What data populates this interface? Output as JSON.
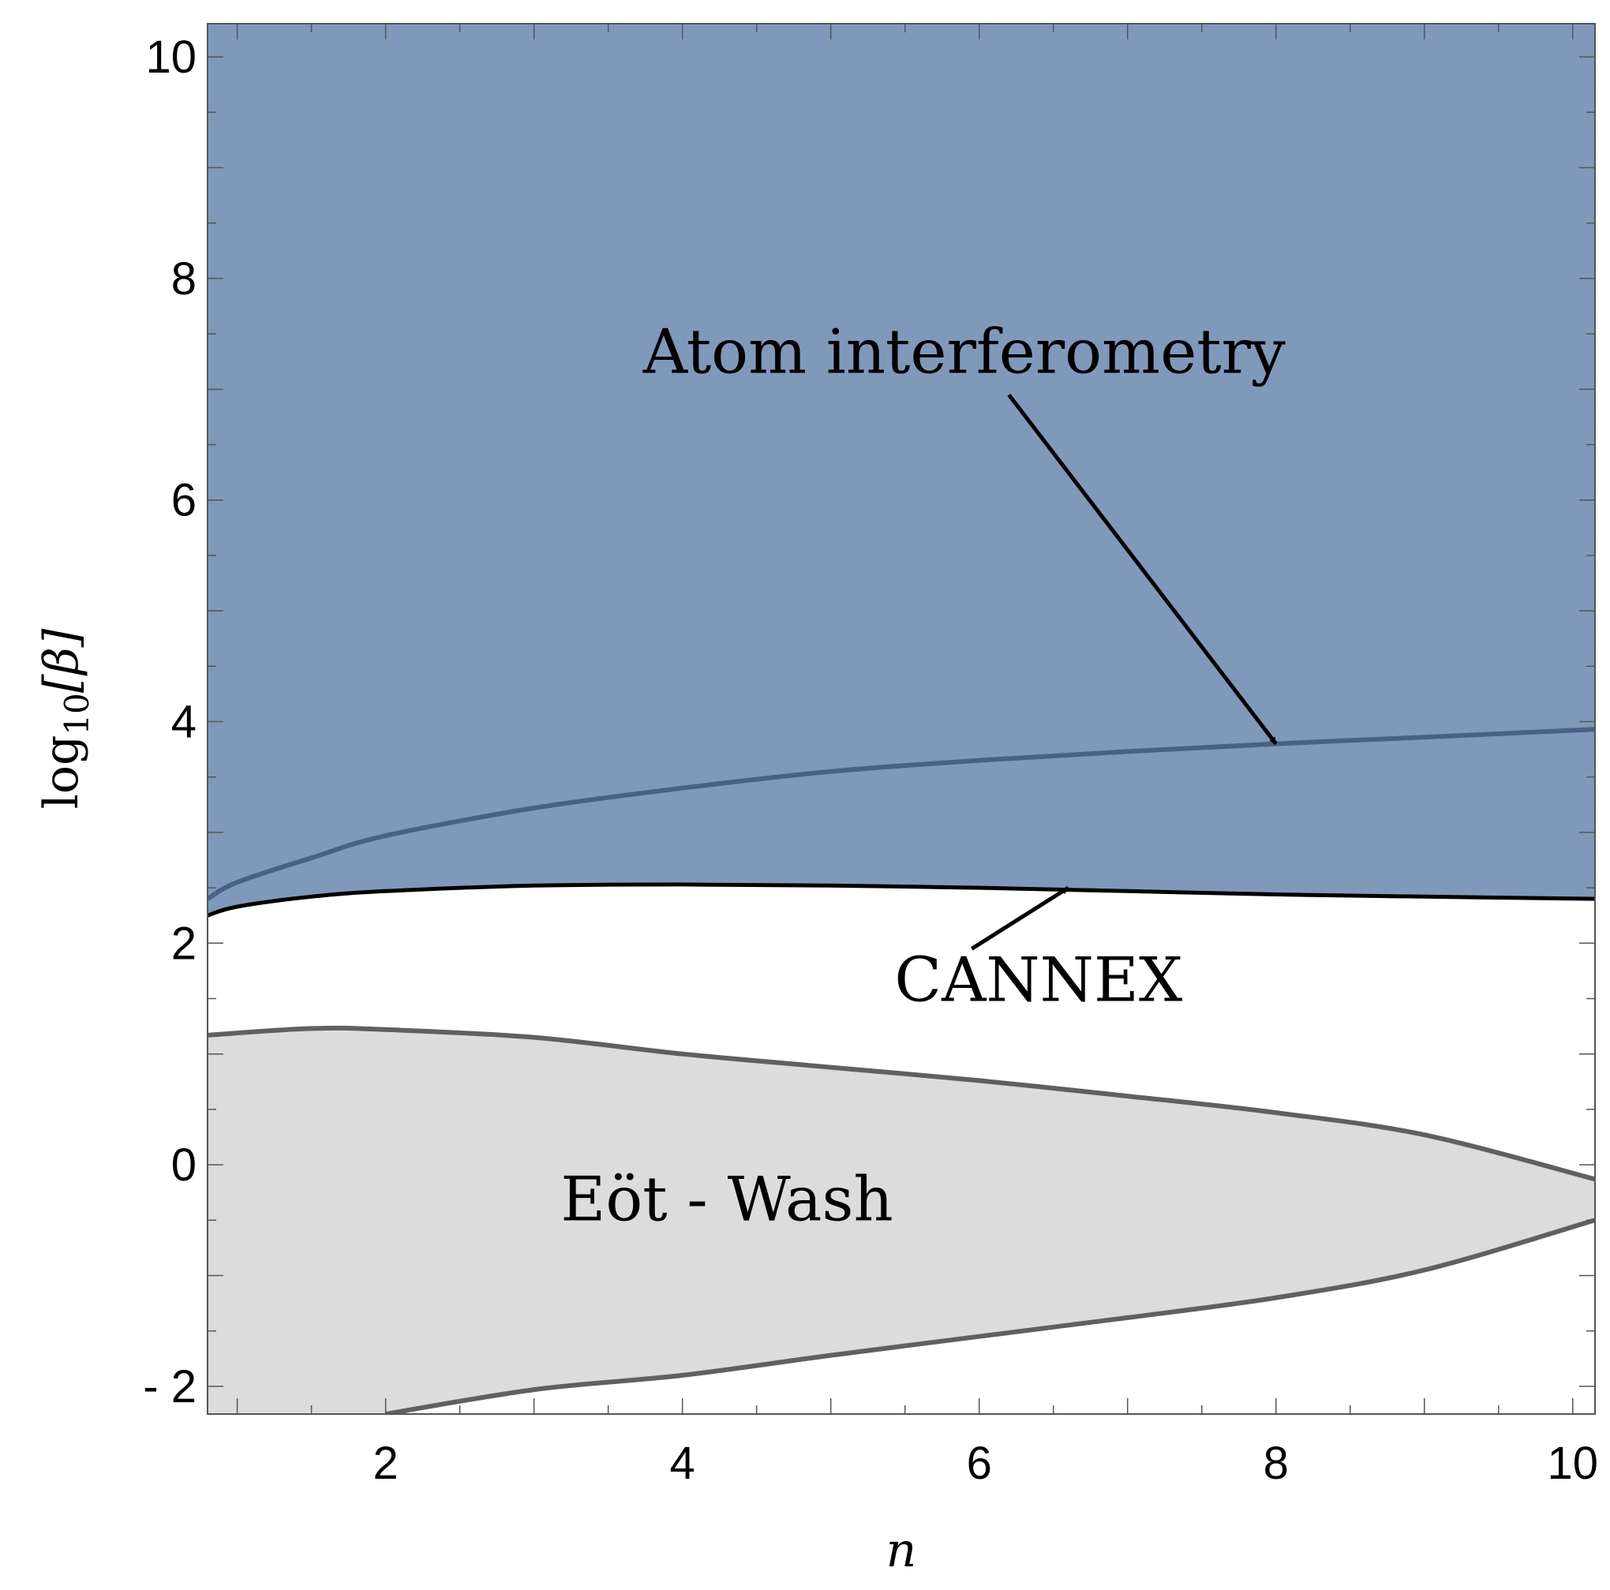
{
  "chart_data": {
    "type": "area",
    "xlabel": "n",
    "ylabel": "log₁₀[β]",
    "ylabel_parts": {
      "func": "log",
      "subscript": "10",
      "arg": "[β]"
    },
    "xlim": [
      0.8,
      10.15
    ],
    "ylim": [
      -2.25,
      10.3
    ],
    "x_ticks": [
      2,
      4,
      6,
      8,
      10
    ],
    "y_ticks": [
      -2,
      0,
      2,
      4,
      6,
      8,
      10
    ],
    "y_tick_labels": [
      "- 2",
      "0",
      "2",
      "4",
      "6",
      "8",
      "10"
    ],
    "grid": false,
    "series": [
      {
        "name": "CANNEX",
        "fill": "above",
        "fill_color": "#8099BB",
        "line_color": "#000000",
        "points": [
          [
            0.8,
            2.25
          ],
          [
            1.0,
            2.33
          ],
          [
            1.5,
            2.42
          ],
          [
            2.0,
            2.47
          ],
          [
            3.0,
            2.52
          ],
          [
            4.0,
            2.53
          ],
          [
            5.0,
            2.52
          ],
          [
            6.0,
            2.5
          ],
          [
            7.0,
            2.47
          ],
          [
            8.0,
            2.44
          ],
          [
            9.0,
            2.42
          ],
          [
            10.15,
            2.4
          ]
        ]
      },
      {
        "name": "Atom interferometry",
        "fill": "none",
        "line_color": "#4A6187",
        "points": [
          [
            0.8,
            2.4
          ],
          [
            1.0,
            2.55
          ],
          [
            1.5,
            2.77
          ],
          [
            2.0,
            2.97
          ],
          [
            3.0,
            3.22
          ],
          [
            4.0,
            3.4
          ],
          [
            5.0,
            3.55
          ],
          [
            6.0,
            3.65
          ],
          [
            7.0,
            3.73
          ],
          [
            8.0,
            3.8
          ],
          [
            9.0,
            3.86
          ],
          [
            10.15,
            3.93
          ]
        ]
      },
      {
        "name": "Eöt - Wash",
        "fill": "inside",
        "fill_color": "#DCDCDC",
        "line_color": "#606060",
        "upper": [
          [
            0.8,
            1.17
          ],
          [
            1.5,
            1.23
          ],
          [
            2.0,
            1.22
          ],
          [
            3.0,
            1.15
          ],
          [
            4.0,
            1.0
          ],
          [
            5.0,
            0.88
          ],
          [
            6.0,
            0.76
          ],
          [
            7.0,
            0.62
          ],
          [
            8.0,
            0.47
          ],
          [
            9.0,
            0.27
          ],
          [
            10.15,
            -0.13
          ]
        ],
        "lower": [
          [
            0.8,
            -2.25
          ],
          [
            2.0,
            -2.25
          ],
          [
            3.0,
            -2.03
          ],
          [
            4.0,
            -1.9
          ],
          [
            5.0,
            -1.72
          ],
          [
            6.0,
            -1.55
          ],
          [
            7.0,
            -1.38
          ],
          [
            8.0,
            -1.2
          ],
          [
            9.0,
            -0.95
          ],
          [
            10.15,
            -0.5
          ]
        ]
      }
    ],
    "annotations": [
      {
        "text": "Atom interferometry",
        "x": 5.9,
        "y": 7.15,
        "arrow_from": [
          6.2,
          6.95
        ],
        "arrow_to": [
          8.0,
          3.8
        ]
      },
      {
        "text": "CANNEX",
        "x": 6.4,
        "y": 1.48,
        "arrow_from": [
          5.95,
          1.95
        ],
        "arrow_to": [
          6.6,
          2.5
        ]
      },
      {
        "text": "Eöt - Wash",
        "x": 4.3,
        "y": -0.5
      }
    ]
  }
}
